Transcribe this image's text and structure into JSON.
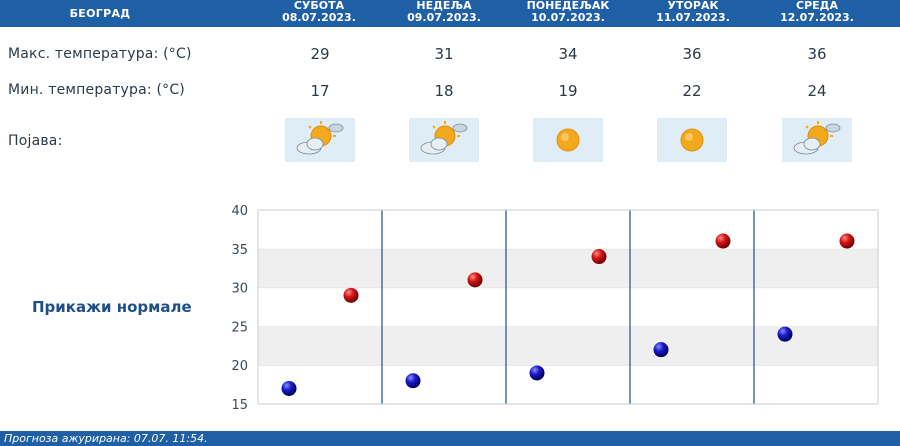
{
  "header": {
    "city": "БЕОГРАД"
  },
  "days": [
    {
      "name": "СУБОТА",
      "date": "08.07.2023.",
      "max": "29",
      "min": "17",
      "icon": "partly-cloudy-icon"
    },
    {
      "name": "НЕДЕЉА",
      "date": "09.07.2023.",
      "max": "31",
      "min": "18",
      "icon": "partly-cloudy-icon"
    },
    {
      "name": "ПОНЕДЕЉАК",
      "date": "10.07.2023.",
      "max": "34",
      "min": "19",
      "icon": "sunny-icon"
    },
    {
      "name": "УТОРАК",
      "date": "11.07.2023.",
      "max": "36",
      "min": "22",
      "icon": "sunny-icon"
    },
    {
      "name": "СРЕДА",
      "date": "12.07.2023.",
      "max": "36",
      "min": "24",
      "icon": "partly-cloudy-icon"
    }
  ],
  "labels": {
    "max": "Макс. температура: (°C)",
    "min": "Мин. температура: (°C)",
    "phenomenon": "Појава:"
  },
  "norm_link": "Прикажи нормале",
  "chart_data": {
    "type": "scatter",
    "ylim": [
      15,
      40
    ],
    "yticks": [
      "15",
      "20",
      "25",
      "30",
      "35",
      "40"
    ],
    "categories": [
      "08.07.2023.",
      "09.07.2023.",
      "10.07.2023.",
      "11.07.2023.",
      "12.07.2023."
    ],
    "series": [
      {
        "values": [
          29,
          31,
          34,
          36,
          36
        ],
        "color": "#cc1111"
      },
      {
        "values": [
          17,
          18,
          19,
          22,
          24
        ],
        "color": "#1414b4"
      }
    ],
    "grid": true
  },
  "footer": "Прогноза ажурирана:  07.07. 11:54."
}
